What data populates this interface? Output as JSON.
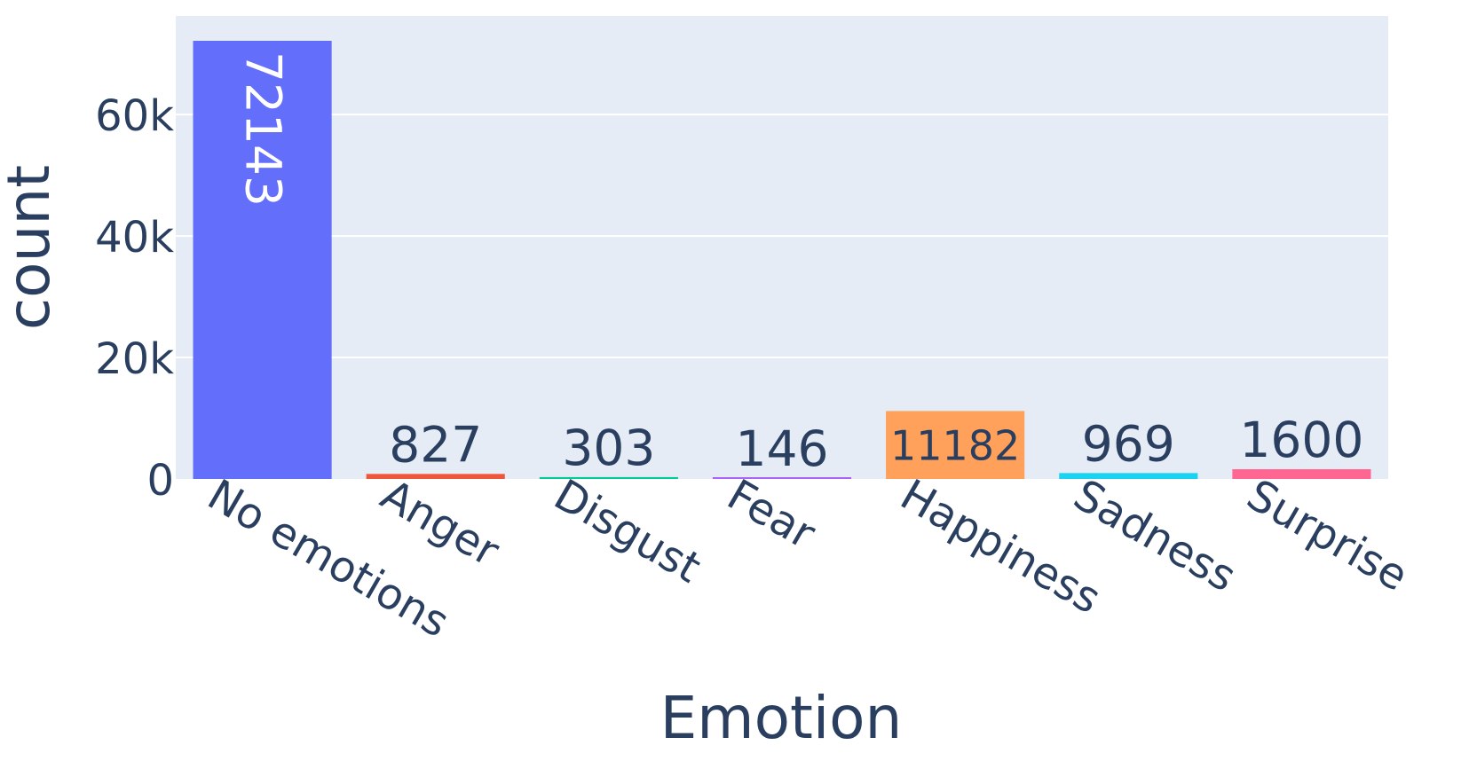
{
  "chart_data": {
    "type": "bar",
    "xlabel": "Emotion",
    "ylabel": "count",
    "ylim": [
      0,
      72143
    ],
    "categories": [
      "No emotions",
      "Anger",
      "Disgust",
      "Fear",
      "Happiness",
      "Sadness",
      "Surprise"
    ],
    "values": [
      72143,
      827,
      303,
      146,
      11182,
      969,
      1600
    ],
    "value_labels": [
      "72143",
      "827",
      "303",
      "146",
      "11182",
      "969",
      "1600"
    ],
    "colors": [
      "#636efa",
      "#ef553b",
      "#00cc96",
      "#ab63fa",
      "#ffa15a",
      "#19d3f3",
      "#ff6692"
    ],
    "yticks": [
      0,
      20000,
      40000,
      60000
    ],
    "ytick_labels": [
      "0",
      "20k",
      "40k",
      "60k"
    ],
    "grid": true,
    "legend": false,
    "plot_background": "#e5ecf6",
    "grid_color": "#ffffff",
    "text_color": "#2a3f5f"
  }
}
